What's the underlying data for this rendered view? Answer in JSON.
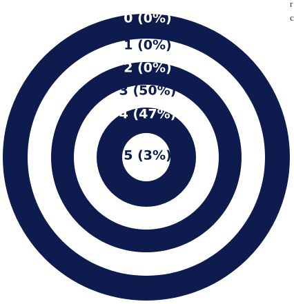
{
  "rings": [
    {
      "label": "0 (0%)"
    },
    {
      "label": "1 (0%)"
    },
    {
      "label": "2 (0%)"
    },
    {
      "label": "3 (50%)"
    },
    {
      "label": "4 (47%)"
    },
    {
      "label": "5 (3%)"
    }
  ],
  "edge_text": [
    "r",
    "c"
  ]
}
